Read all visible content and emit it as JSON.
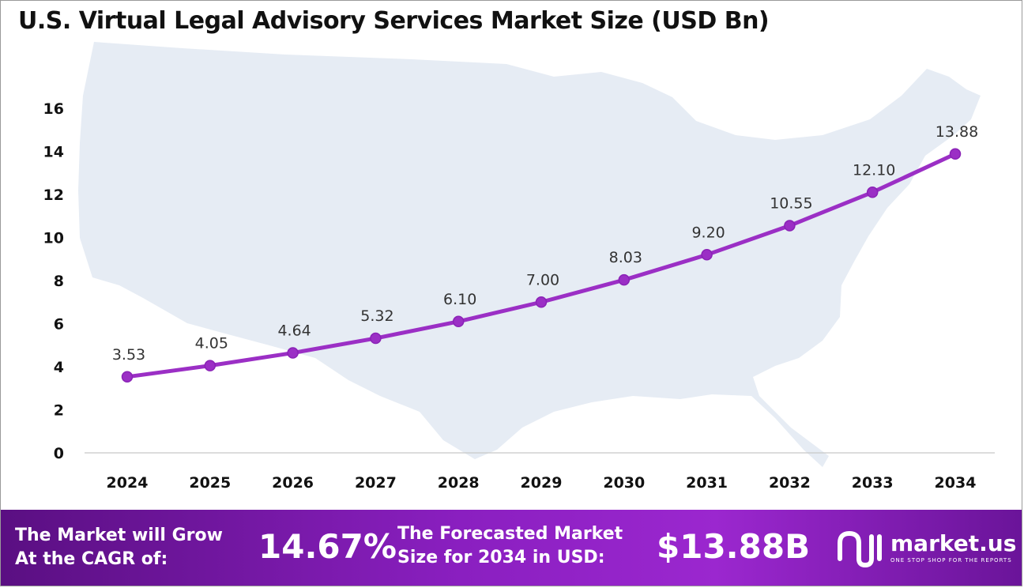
{
  "title": "U.S. Virtual Legal Advisory Services Market Size (USD Bn)",
  "chart_data": {
    "type": "line",
    "x": [
      "2024",
      "2025",
      "2026",
      "2027",
      "2028",
      "2029",
      "2030",
      "2031",
      "2032",
      "2033",
      "2034"
    ],
    "values": [
      3.53,
      4.05,
      4.64,
      5.32,
      6.1,
      7.0,
      8.03,
      9.2,
      10.55,
      12.1,
      13.88
    ],
    "data_labels": [
      "3.53",
      "4.05",
      "4.64",
      "5.32",
      "6.10",
      "7.00",
      "8.03",
      "9.20",
      "10.55",
      "12.10",
      "13.88"
    ],
    "yticks": [
      "0",
      "2",
      "4",
      "6",
      "8",
      "10",
      "12",
      "14",
      "16"
    ],
    "ylim": [
      0,
      16
    ],
    "grid": false,
    "legend": "none",
    "line_color": "#9b2fc5",
    "background": "United States map silhouette"
  },
  "footer": {
    "cagr_label_line1": "The Market will Grow",
    "cagr_label_line2": "At the CAGR of:",
    "cagr_value": "14.67%",
    "forecast_label_line1": "The Forecasted Market",
    "forecast_label_line2": "Size for 2034 in USD:",
    "forecast_value": "$13.88B",
    "brand_name": "market.us",
    "brand_tagline": "ONE STOP SHOP FOR THE REPORTS"
  },
  "colors": {
    "footer_gradient_start": "#5a0f82",
    "footer_gradient_end": "#9b27cf",
    "map": "#e6ecf4"
  }
}
